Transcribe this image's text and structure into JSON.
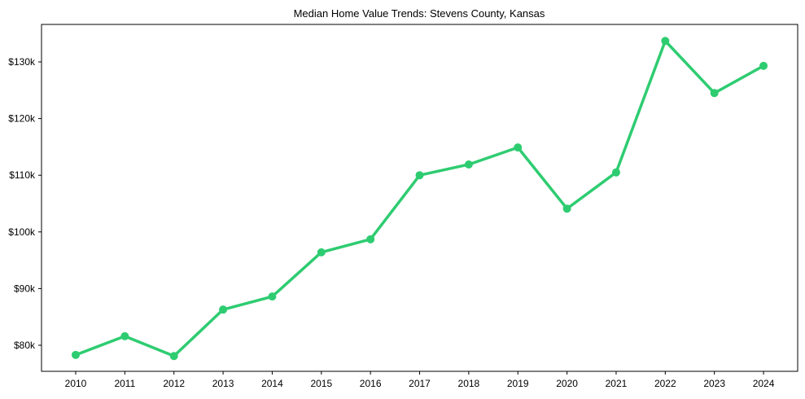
{
  "chart_data": {
    "type": "line",
    "title": "Median Home Value Trends: Stevens County, Kansas",
    "xlabel": "",
    "ylabel": "",
    "categories": [
      "2010",
      "2011",
      "2012",
      "2013",
      "2014",
      "2015",
      "2016",
      "2017",
      "2018",
      "2019",
      "2020",
      "2021",
      "2022",
      "2023",
      "2024"
    ],
    "series": [
      {
        "name": "Median Home Value",
        "color": "#2ecc71",
        "values": [
          78300,
          81600,
          78100,
          86300,
          88600,
          96400,
          98700,
          110000,
          111900,
          114900,
          104100,
          110500,
          133700,
          124500,
          129300
        ]
      }
    ],
    "yticks": [
      80000,
      90000,
      100000,
      110000,
      120000,
      130000
    ],
    "ytick_labels": [
      "$80k",
      "$90k",
      "$100k",
      "$110k",
      "$120k",
      "$130k"
    ],
    "ylim": [
      75800,
      136600
    ],
    "grid": false,
    "legend": null
  }
}
